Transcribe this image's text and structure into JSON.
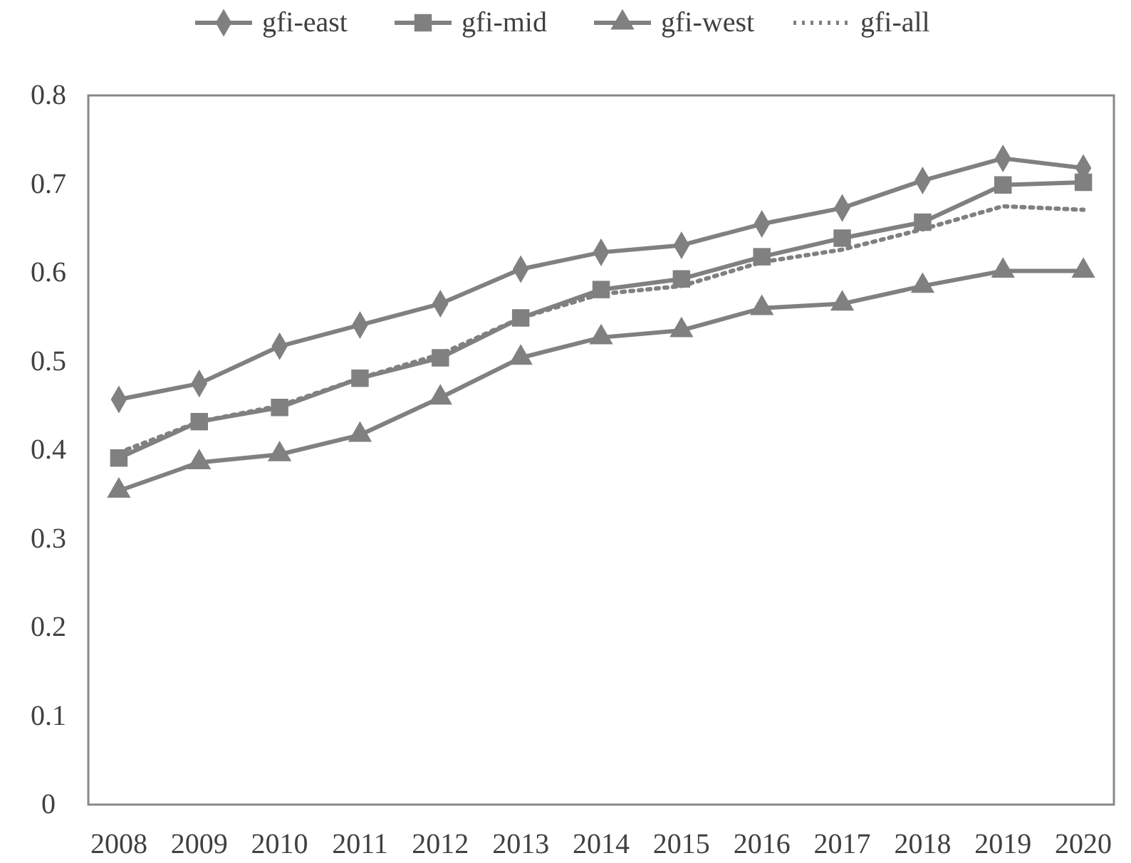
{
  "chart_data": {
    "type": "line",
    "categories": [
      "2008",
      "2009",
      "2010",
      "2011",
      "2012",
      "2013",
      "2014",
      "2015",
      "2016",
      "2017",
      "2018",
      "2019",
      "2020"
    ],
    "ylim": [
      0,
      0.8
    ],
    "yticks": [
      0,
      0.1,
      0.2,
      0.3,
      0.4,
      0.5,
      0.6,
      0.7,
      0.8
    ],
    "grid": false,
    "legend": "top",
    "series": [
      {
        "name": "gfi-east",
        "color": "#808080",
        "marker": "diamond",
        "line_style": "solid",
        "values": [
          0.457,
          0.475,
          0.517,
          0.541,
          0.565,
          0.604,
          0.623,
          0.631,
          0.655,
          0.673,
          0.704,
          0.729,
          0.718
        ]
      },
      {
        "name": "gfi-mid",
        "color": "#808080",
        "marker": "square",
        "line_style": "solid",
        "values": [
          0.391,
          0.432,
          0.448,
          0.481,
          0.504,
          0.549,
          0.581,
          0.593,
          0.618,
          0.639,
          0.657,
          0.699,
          0.702
        ]
      },
      {
        "name": "gfi-west",
        "color": "#808080",
        "marker": "triangle",
        "line_style": "solid",
        "values": [
          0.354,
          0.386,
          0.395,
          0.417,
          0.459,
          0.504,
          0.527,
          0.535,
          0.56,
          0.565,
          0.585,
          0.602,
          0.602
        ]
      },
      {
        "name": "gfi-all",
        "color": "#808080",
        "marker": "none",
        "line_style": "dotted",
        "values": [
          0.397,
          0.432,
          0.45,
          0.481,
          0.508,
          0.549,
          0.576,
          0.585,
          0.612,
          0.626,
          0.649,
          0.675,
          0.671
        ]
      }
    ]
  }
}
